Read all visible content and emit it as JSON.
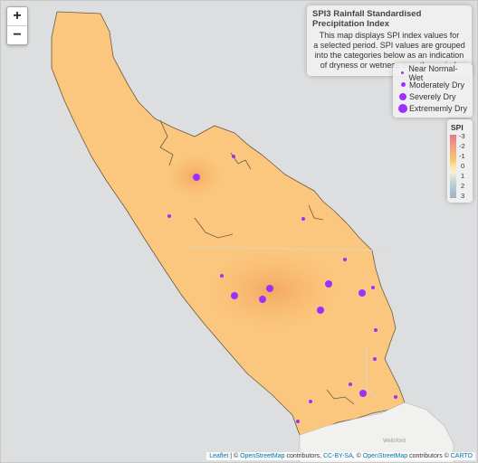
{
  "zoom": {
    "in_label": "+",
    "out_label": "−"
  },
  "info": {
    "title": "SPI3 Rainfall Standardised Precipitation Index",
    "body_lines": [
      "This map displays SPI index values for",
      "a selected period. SPI values are grouped",
      "into the categories below as an indication",
      "of dryness or wetness over the period."
    ]
  },
  "legend_size": {
    "items": [
      {
        "label": "Near Normal-Wet",
        "color": "#9b30ff"
      },
      {
        "label": "Moderately Dry",
        "color": "#9b30ff"
      },
      {
        "label": "Severely Dry",
        "color": "#9b30ff"
      },
      {
        "label": "Extrememly Dry",
        "color": "#9b30ff"
      }
    ]
  },
  "legend_spi": {
    "title": "SPI",
    "ticks": [
      "-3",
      "-2",
      "-1",
      "0",
      "1",
      "2",
      "3"
    ]
  },
  "places": {
    "town_label": "Wellsford"
  },
  "attribution": {
    "leaflet": "Leaflet",
    "sep1": " | © ",
    "osm1": "OpenStreetMap",
    "contributors1": " contributors, ",
    "ccbysa": "CC-BY-SA",
    "sep2": ", © ",
    "osm2": "OpenStreetMap",
    "contributors2": " contributors © ",
    "carto": "CARTO"
  },
  "stations": [
    {
      "category": "Moderately Dry"
    },
    {
      "category": "Near Normal-Wet"
    },
    {
      "category": "Near Normal-Wet"
    },
    {
      "category": "Near Normal-Wet"
    },
    {
      "category": "Near Normal-Wet"
    },
    {
      "category": "Near Normal-Wet"
    },
    {
      "category": "Near Normal-Wet"
    },
    {
      "category": "Moderately Dry"
    },
    {
      "category": "Moderately Dry"
    },
    {
      "category": "Moderately Dry"
    },
    {
      "category": "Moderately Dry"
    },
    {
      "category": "Moderately Dry"
    },
    {
      "category": "Moderately Dry"
    },
    {
      "category": "Near Normal-Wet"
    },
    {
      "category": "Near Normal-Wet"
    },
    {
      "category": "Near Normal-Wet"
    },
    {
      "category": "Moderately Dry"
    },
    {
      "category": "Near Normal-Wet"
    },
    {
      "category": "Near Normal-Wet"
    },
    {
      "category": "Near Normal-Wet"
    }
  ],
  "colors": {
    "marker": "#9b30ff",
    "land": "#fbc77e",
    "sea": "#dcdedf"
  }
}
